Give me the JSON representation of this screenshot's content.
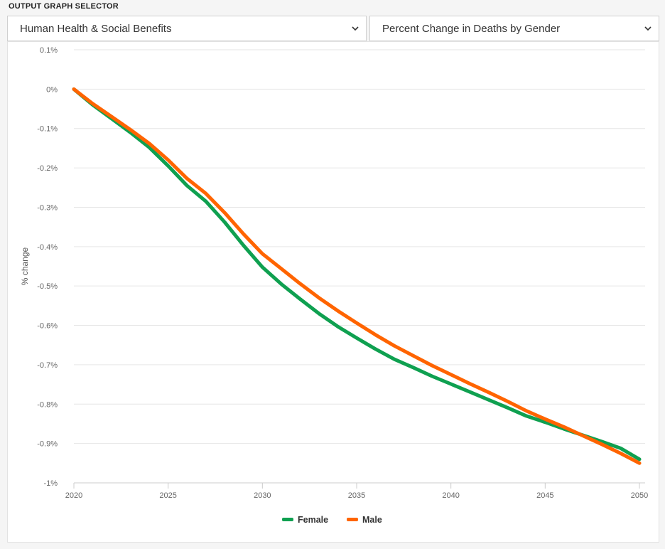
{
  "header": {
    "title": "OUTPUT GRAPH SELECTOR"
  },
  "selectors": {
    "category": "Human Health & Social Benefits",
    "graph": "Percent Change in Deaths by Gender"
  },
  "icons": {
    "dropdown": "chevron-down-icon"
  },
  "colors": {
    "female": "#0fa050",
    "male": "#ff6400",
    "grid": "#e6e6e6"
  },
  "chart_data": {
    "type": "line",
    "title": "",
    "xlabel": "",
    "ylabel": "% change",
    "ylim": [
      -1.0,
      0.1
    ],
    "xlim": [
      2020,
      2050
    ],
    "y_ticks": [
      0.1,
      0,
      -0.1,
      -0.2,
      -0.3,
      -0.4,
      -0.5,
      -0.6,
      -0.7,
      -0.8,
      -0.9,
      -1.0
    ],
    "y_tick_labels": [
      "0.1%",
      "0%",
      "-0.1%",
      "-0.2%",
      "-0.3%",
      "-0.4%",
      "-0.5%",
      "-0.6%",
      "-0.7%",
      "-0.8%",
      "-0.9%",
      "-1%"
    ],
    "x_ticks": [
      2020,
      2025,
      2030,
      2035,
      2040,
      2045,
      2050
    ],
    "x_tick_labels": [
      "2020",
      "2025",
      "2030",
      "2035",
      "2040",
      "2045",
      "2050"
    ],
    "grid": true,
    "legend_position": "bottom-center",
    "x": [
      2020,
      2021,
      2022,
      2023,
      2024,
      2025,
      2026,
      2027,
      2028,
      2029,
      2030,
      2031,
      2032,
      2033,
      2034,
      2035,
      2036,
      2037,
      2038,
      2039,
      2040,
      2041,
      2042,
      2043,
      2044,
      2045,
      2046,
      2047,
      2048,
      2049,
      2050
    ],
    "series": [
      {
        "name": "Female",
        "color": "#0fa050",
        "values": [
          0.0,
          -0.04,
          -0.075,
          -0.11,
          -0.148,
          -0.195,
          -0.245,
          -0.285,
          -0.338,
          -0.397,
          -0.452,
          -0.495,
          -0.533,
          -0.57,
          -0.603,
          -0.632,
          -0.66,
          -0.686,
          -0.707,
          -0.729,
          -0.749,
          -0.769,
          -0.789,
          -0.809,
          -0.83,
          -0.846,
          -0.863,
          -0.879,
          -0.895,
          -0.912,
          -0.94
        ]
      },
      {
        "name": "Male",
        "color": "#ff6400",
        "values": [
          0.0,
          -0.037,
          -0.07,
          -0.103,
          -0.138,
          -0.18,
          -0.227,
          -0.265,
          -0.314,
          -0.368,
          -0.418,
          -0.456,
          -0.494,
          -0.53,
          -0.563,
          -0.594,
          -0.624,
          -0.652,
          -0.677,
          -0.702,
          -0.725,
          -0.748,
          -0.77,
          -0.793,
          -0.817,
          -0.838,
          -0.858,
          -0.88,
          -0.902,
          -0.925,
          -0.95
        ]
      }
    ]
  }
}
